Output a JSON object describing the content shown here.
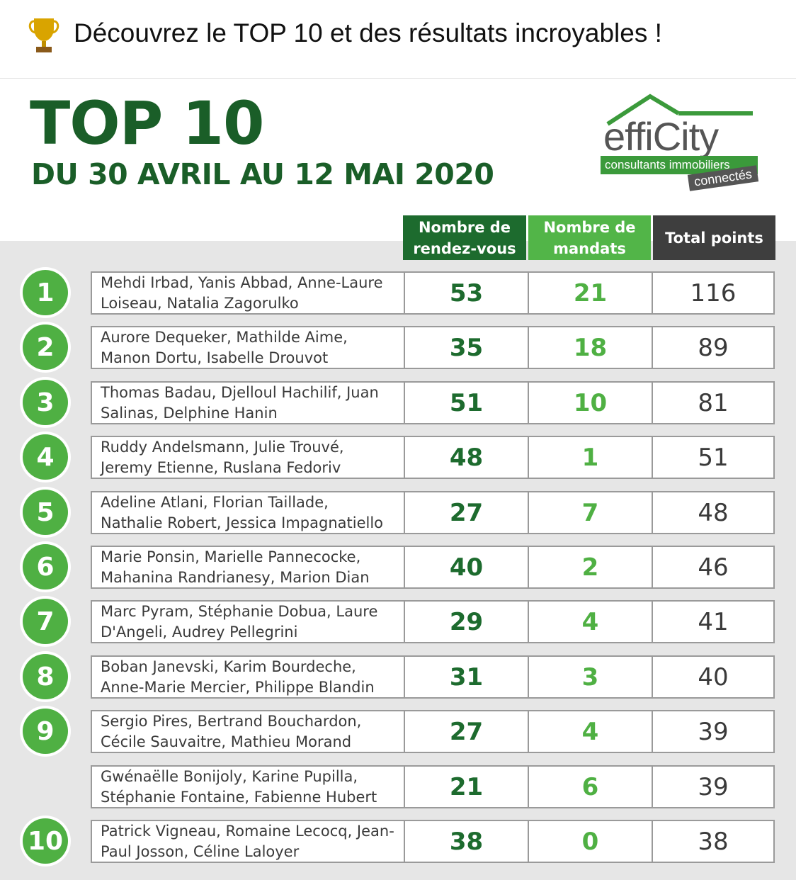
{
  "post": {
    "caption": "Découvrez le TOP 10 et des résultats incroyables !",
    "icon": "trophy-icon"
  },
  "poster": {
    "title": "TOP 10",
    "subtitle": "DU 30 AVRIL AU 12 MAI 2020",
    "logo": {
      "word": "effiCity",
      "tagline": "consultants immobiliers",
      "tag": "connectés"
    },
    "colors": {
      "dark_green": "#1d6b2e",
      "light_green": "#4fb043",
      "dark_grey": "#3e3e3e",
      "panel_grey": "#e6e6e6"
    },
    "headers": {
      "rdv": "Nombre de rendez-vous",
      "mandats": "Nombre de mandats",
      "total": "Total points"
    },
    "rows": [
      {
        "rank": "1",
        "names": "Mehdi Irbad, Yanis Abbad, Anne-Laure Loiseau, Natalia Zagorulko",
        "rdv": "53",
        "mandats": "21",
        "total": "116"
      },
      {
        "rank": "2",
        "names": "Aurore Dequeker, Mathilde Aime, Manon Dortu, Isabelle Drouvot",
        "rdv": "35",
        "mandats": "18",
        "total": "89"
      },
      {
        "rank": "3",
        "names": "Thomas Badau, Djelloul Hachilif, Juan Salinas, Delphine Hanin",
        "rdv": "51",
        "mandats": "10",
        "total": "81"
      },
      {
        "rank": "4",
        "names": "Ruddy Andelsmann, Julie Trouvé, Jeremy Etienne, Ruslana Fedoriv",
        "rdv": "48",
        "mandats": "1",
        "total": "51"
      },
      {
        "rank": "5",
        "names": "Adeline Atlani, Florian Taillade, Nathalie Robert, Jessica Impagnatiello",
        "rdv": "27",
        "mandats": "7",
        "total": "48"
      },
      {
        "rank": "6",
        "names": "Marie Ponsin, Marielle Pannecocke, Mahanina Randrianesy, Marion Dian",
        "rdv": "40",
        "mandats": "2",
        "total": "46"
      },
      {
        "rank": "7",
        "names": "Marc Pyram, Stéphanie Dobua, Laure D'Angeli, Audrey Pellegrini",
        "rdv": "29",
        "mandats": "4",
        "total": "41"
      },
      {
        "rank": "8",
        "names": "Boban Janevski, Karim Bourdeche, Anne-Marie Mercier, Philippe Blandin",
        "rdv": "31",
        "mandats": "3",
        "total": "40"
      },
      {
        "rank": "9",
        "names": "Sergio Pires, Bertrand Bouchardon, Cécile Sauvaitre, Mathieu Morand",
        "rdv": "27",
        "mandats": "4",
        "total": "39"
      },
      {
        "rank": "",
        "names": "Gwénaëlle Bonijoly, Karine Pupilla, Stéphanie Fontaine, Fabienne Hubert",
        "rdv": "21",
        "mandats": "6",
        "total": "39"
      },
      {
        "rank": "10",
        "names": "Patrick Vigneau, Romaine Lecocq, Jean-Paul Josson, Céline Laloyer",
        "rdv": "38",
        "mandats": "0",
        "total": "38"
      }
    ]
  }
}
